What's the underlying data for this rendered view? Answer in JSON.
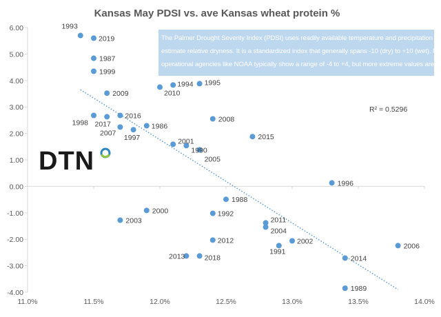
{
  "chart_data": {
    "type": "scatter",
    "title": "Kansas May PDSI vs. ave Kansas wheat protein %",
    "xlabel": "",
    "ylabel": "",
    "xlim": [
      11.0,
      14.0
    ],
    "ylim": [
      -4.0,
      6.0
    ],
    "x_ticks": [
      11.0,
      11.5,
      12.0,
      12.5,
      13.0,
      13.5,
      14.0
    ],
    "x_tick_labels": [
      "11.0%",
      "11.5%",
      "12.0%",
      "12.5%",
      "13.0%",
      "13.5%",
      "14.0%"
    ],
    "y_ticks": [
      -4,
      -3,
      -2,
      -1,
      0,
      1,
      2,
      3,
      4,
      5,
      6
    ],
    "y_tick_labels": [
      "-4.00",
      "-3.00",
      "-2.00",
      "-1.00",
      "0.00",
      "1.00",
      "2.00",
      "3.00",
      "4.00",
      "5.00",
      "6.00"
    ],
    "grid": false,
    "legend": "none",
    "marker_color": "#5b9bd5",
    "points": [
      {
        "label": "1993",
        "x": 11.4,
        "y": 5.7
      },
      {
        "label": "2019",
        "x": 11.5,
        "y": 5.6
      },
      {
        "label": "1987",
        "x": 11.5,
        "y": 4.84
      },
      {
        "label": "1999",
        "x": 11.5,
        "y": 4.35
      },
      {
        "label": "2009",
        "x": 11.6,
        "y": 3.52
      },
      {
        "label": "2010",
        "x": 12.0,
        "y": 3.75
      },
      {
        "label": "1994",
        "x": 12.1,
        "y": 3.83
      },
      {
        "label": "1995",
        "x": 12.3,
        "y": 3.88
      },
      {
        "label": "1998",
        "x": 11.5,
        "y": 2.68
      },
      {
        "label": "2017",
        "x": 11.6,
        "y": 2.63
      },
      {
        "label": "2016",
        "x": 11.7,
        "y": 2.68
      },
      {
        "label": "2007",
        "x": 11.7,
        "y": 2.24
      },
      {
        "label": "1997",
        "x": 11.8,
        "y": 2.14
      },
      {
        "label": "1986",
        "x": 11.9,
        "y": 2.29
      },
      {
        "label": "2008",
        "x": 12.4,
        "y": 2.55
      },
      {
        "label": "2015",
        "x": 12.7,
        "y": 1.88
      },
      {
        "label": "2001",
        "x": 12.1,
        "y": 1.59
      },
      {
        "label": "1990",
        "x": 12.2,
        "y": 1.54
      },
      {
        "label": "2005",
        "x": 12.3,
        "y": 1.38
      },
      {
        "label": "1996",
        "x": 13.3,
        "y": 0.13
      },
      {
        "label": "1988",
        "x": 12.5,
        "y": -0.49
      },
      {
        "label": "2000",
        "x": 11.9,
        "y": -0.91
      },
      {
        "label": "1992",
        "x": 12.4,
        "y": -1.02
      },
      {
        "label": "2003",
        "x": 11.7,
        "y": -1.28
      },
      {
        "label": "2011",
        "x": 12.8,
        "y": -1.38
      },
      {
        "label": "2004",
        "x": 12.8,
        "y": -1.54
      },
      {
        "label": "2012",
        "x": 12.4,
        "y": -2.03
      },
      {
        "label": "2002",
        "x": 13.0,
        "y": -2.06
      },
      {
        "label": "1991",
        "x": 12.9,
        "y": -2.24
      },
      {
        "label": "2006",
        "x": 13.8,
        "y": -2.24
      },
      {
        "label": "2013",
        "x": 12.2,
        "y": -2.63
      },
      {
        "label": "2018",
        "x": 12.3,
        "y": -2.63
      },
      {
        "label": "2014",
        "x": 13.4,
        "y": -2.71
      },
      {
        "label": "1989",
        "x": 13.4,
        "y": -3.85
      }
    ],
    "trendline": {
      "type": "linear",
      "color": "#5b9bd5",
      "style": "dotted",
      "from": {
        "x": 11.4,
        "y": 3.65
      },
      "to": {
        "x": 13.8,
        "y": -3.9
      },
      "r_squared_label": "R² = 0.5296"
    },
    "annotation": {
      "lines": [
        "The Palmer Drought Severity Index (PDSI) uses readily available temperature and precipitation data to",
        "estimate relative dryness. It is a standardized index that generally spans -10 (dry) to +10 (wet). Maps of",
        "operational agencies like NOAA typically show a range of -4 to +4, but more extreme values are possible."
      ],
      "background": "#bdd7ee"
    }
  },
  "logo": {
    "text": "DTN",
    "ring_colors": [
      "#2e86c1",
      "#8dc63f"
    ]
  }
}
